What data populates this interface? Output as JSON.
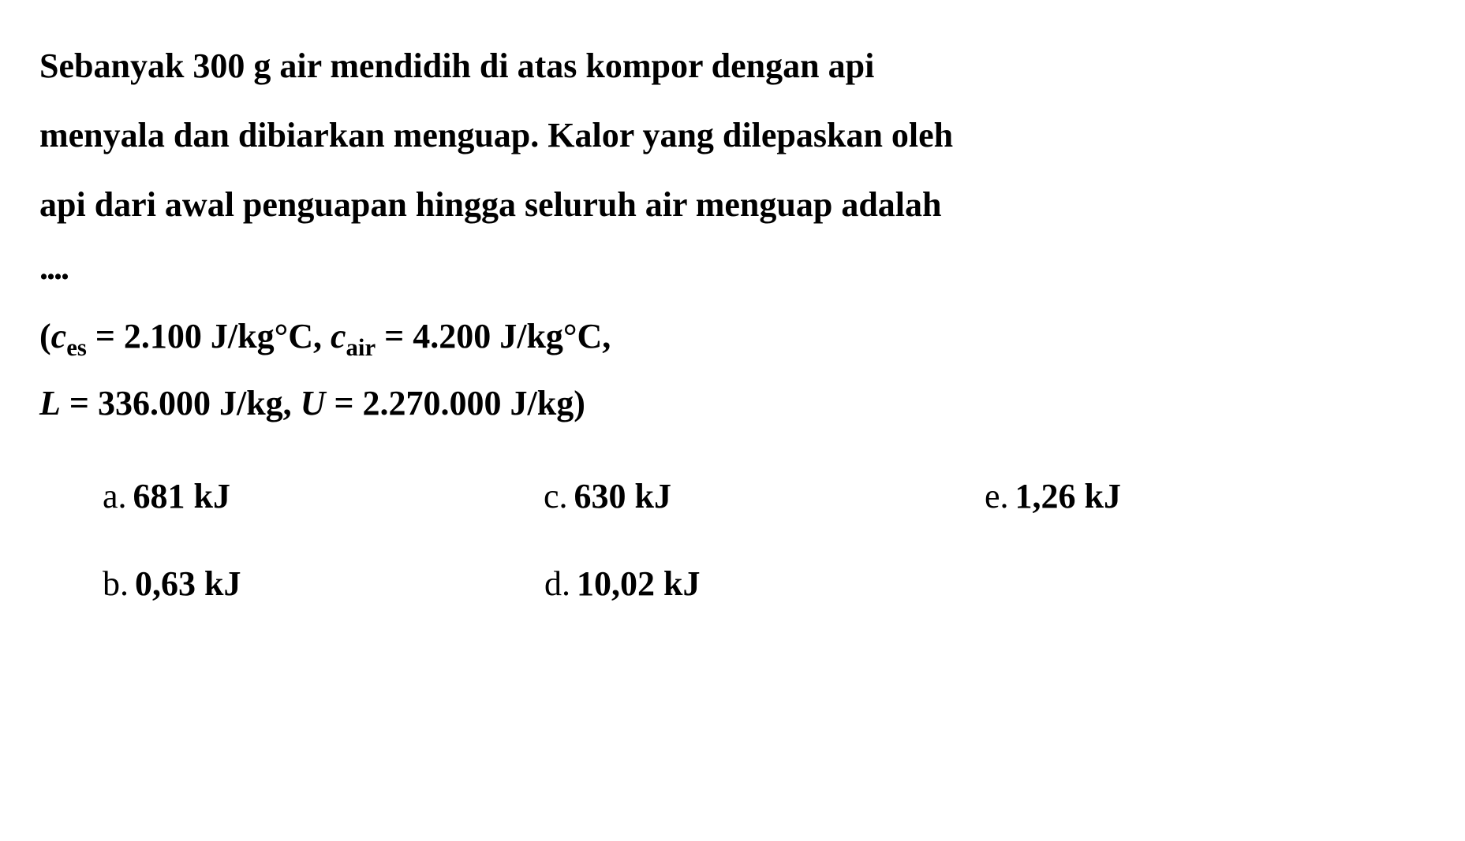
{
  "question": {
    "line1": "Sebanyak 300 g air mendidih di atas kompor dengan api",
    "line2": "menyala dan dibiarkan menguap. Kalor yang dilepaskan oleh",
    "line3": "api dari awal penguapan hingga seluruh air menguap adalah",
    "ellipsis": "...."
  },
  "given": {
    "open_paren": "(",
    "c_symbol": "c",
    "es_sub": "es",
    "eq": " = ",
    "ces_val": "2.100 J/kg°C, ",
    "air_sub": "air",
    "cair_val": "4.200 J/kg°C,",
    "L_symbol": "L",
    "L_val": "336.000 J/kg, ",
    "U_symbol": "U",
    "U_val": "2.270.000 J/kg)",
    "close_paren": ")"
  },
  "options": {
    "a": {
      "letter": "a.",
      "value": "681 kJ"
    },
    "b": {
      "letter": "b.",
      "value": "0,63 kJ"
    },
    "c": {
      "letter": "c.",
      "value": "630 kJ"
    },
    "d": {
      "letter": "d.",
      "value": "10,02 kJ"
    },
    "e": {
      "letter": "e.",
      "value": "1,26 kJ"
    }
  },
  "styling": {
    "background_color": "#ffffff",
    "text_color": "#000000",
    "font_family": "Times New Roman",
    "question_fontsize": 44,
    "font_weight": "bold",
    "line_height": 2.0
  }
}
